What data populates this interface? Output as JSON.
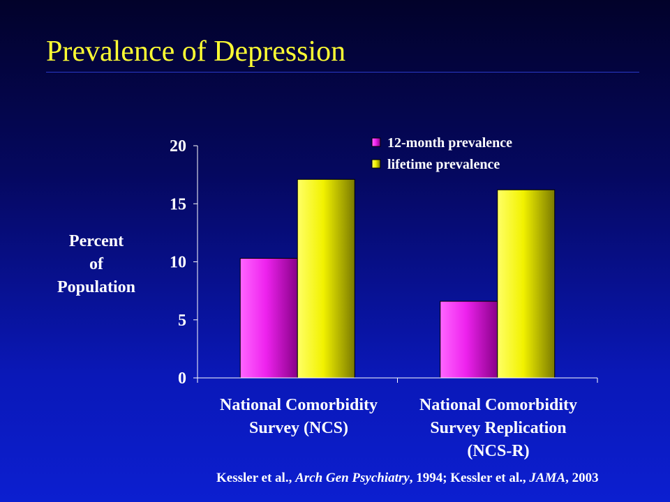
{
  "slide": {
    "title": "Prevalence of Depression",
    "citation": {
      "part1": "Kessler et al., ",
      "journal1": "Arch Gen Psychiatry",
      "part2": ", 1994; Kessler et al., ",
      "journal2": "JAMA",
      "part3": ", 2003"
    }
  },
  "chart_data": {
    "type": "bar",
    "title": "",
    "ylabel_lines": [
      "Percent",
      "of",
      "Population"
    ],
    "categories": [
      "National Comorbidity Survey (NCS)",
      "National Comorbidity Survey Replication (NCS-R)"
    ],
    "category_lines": [
      [
        "National Comorbidity",
        "Survey (NCS)"
      ],
      [
        "National Comorbidity",
        "Survey Replication",
        "(NCS-R)"
      ]
    ],
    "series": [
      {
        "name": "12-month prevalence",
        "values": [
          10.3,
          6.6
        ],
        "color": "#ff33ff"
      },
      {
        "name": "lifetime prevalence",
        "values": [
          17.1,
          16.2
        ],
        "color": "#ffff00"
      }
    ],
    "ylim": [
      0,
      20
    ],
    "yticks": [
      0,
      5,
      10,
      15,
      20
    ],
    "grid": false,
    "legend_position": "top-right"
  }
}
